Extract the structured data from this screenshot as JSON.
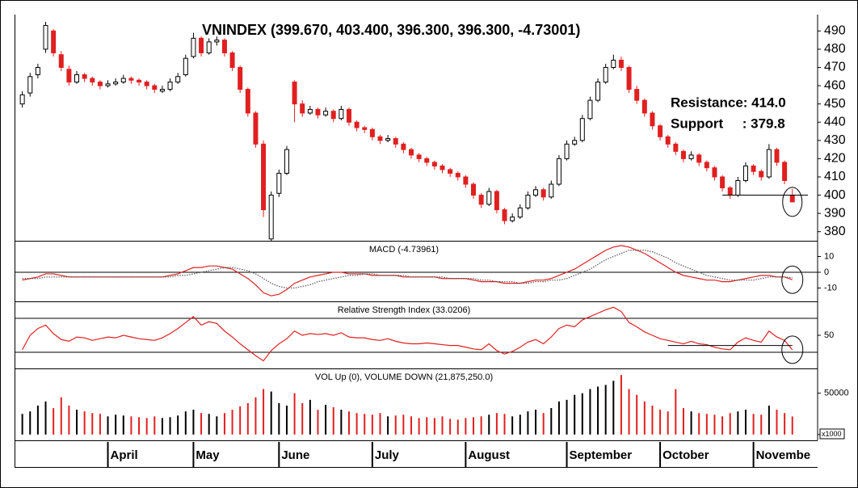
{
  "x_axis": {
    "xlim": [
      -1,
      101
    ],
    "xticks": [
      {
        "value": 11,
        "label": "April"
      },
      {
        "value": 22,
        "label": "May"
      },
      {
        "value": 33,
        "label": "June"
      },
      {
        "value": 45,
        "label": "July"
      },
      {
        "value": 57,
        "label": "August"
      },
      {
        "value": 70,
        "label": "September"
      },
      {
        "value": 82,
        "label": "October"
      },
      {
        "value": 94,
        "label": "Novembe"
      }
    ]
  },
  "chart_data": [
    {
      "type": "candlestick",
      "title": "VNINDEX (399.670, 403.400, 396.300, 396.300, -4.73001)",
      "annotations": [
        "Resistance: 414.0",
        "Support     : 379.8"
      ],
      "support_line": {
        "value": 400,
        "from": 90,
        "to": 101
      },
      "up_color": "#ffffff",
      "down_color": "#e02020",
      "ylim": [
        375,
        499
      ],
      "yticks": [
        380,
        390,
        400,
        410,
        420,
        430,
        440,
        450,
        460,
        470,
        480,
        490
      ],
      "ohlc": [
        [
          450,
          457,
          448,
          455
        ],
        [
          456,
          467,
          454,
          465
        ],
        [
          466,
          472,
          464,
          470
        ],
        [
          480,
          495,
          478,
          493
        ],
        [
          490,
          491,
          476,
          478
        ],
        [
          477,
          479,
          468,
          470
        ],
        [
          469,
          471,
          460,
          462
        ],
        [
          462,
          468,
          461,
          466
        ],
        [
          466,
          467,
          462,
          464
        ],
        [
          464,
          465,
          460,
          462
        ],
        [
          462,
          463,
          458,
          460
        ],
        [
          460,
          463,
          459,
          461
        ],
        [
          461,
          464,
          460,
          462
        ],
        [
          462,
          466,
          461,
          464
        ],
        [
          464,
          465,
          461,
          463
        ],
        [
          463,
          464,
          460,
          462
        ],
        [
          462,
          463,
          458,
          460
        ],
        [
          460,
          461,
          456,
          458
        ],
        [
          457,
          460,
          456,
          458
        ],
        [
          458,
          464,
          457,
          462
        ],
        [
          462,
          467,
          461,
          465
        ],
        [
          466,
          477,
          465,
          475
        ],
        [
          476,
          489,
          475,
          486
        ],
        [
          486,
          487,
          476,
          478
        ],
        [
          478,
          486,
          477,
          484
        ],
        [
          484,
          487,
          482,
          485
        ],
        [
          485,
          486,
          476,
          478
        ],
        [
          478,
          479,
          468,
          470
        ],
        [
          470,
          471,
          456,
          458
        ],
        [
          458,
          459,
          443,
          445
        ],
        [
          445,
          446,
          426,
          428
        ],
        [
          428,
          430,
          388,
          392
        ],
        [
          376,
          402,
          375,
          400
        ],
        [
          401,
          414,
          399,
          412
        ],
        [
          412,
          427,
          411,
          425
        ],
        [
          462,
          463,
          440,
          450
        ],
        [
          450,
          452,
          443,
          445
        ],
        [
          445,
          449,
          444,
          447
        ],
        [
          447,
          448,
          442,
          444
        ],
        [
          444,
          448,
          443,
          446
        ],
        [
          446,
          447,
          440,
          442
        ],
        [
          442,
          449,
          441,
          447
        ],
        [
          447,
          448,
          438,
          440
        ],
        [
          440,
          441,
          435,
          437
        ],
        [
          437,
          438,
          434,
          436
        ],
        [
          436,
          437,
          430,
          432
        ],
        [
          432,
          433,
          428,
          430
        ],
        [
          430,
          433,
          429,
          431
        ],
        [
          431,
          432,
          426,
          428
        ],
        [
          428,
          429,
          423,
          425
        ],
        [
          425,
          426,
          420,
          422
        ],
        [
          422,
          423,
          418,
          420
        ],
        [
          420,
          421,
          416,
          418
        ],
        [
          418,
          419,
          414,
          416
        ],
        [
          416,
          417,
          412,
          414
        ],
        [
          414,
          415,
          410,
          412
        ],
        [
          412,
          413,
          408,
          410
        ],
        [
          410,
          411,
          404,
          406
        ],
        [
          406,
          407,
          398,
          400
        ],
        [
          400,
          401,
          393,
          395
        ],
        [
          395,
          404,
          394,
          402
        ],
        [
          402,
          403,
          390,
          392
        ],
        [
          392,
          393,
          384,
          386
        ],
        [
          386,
          390,
          385,
          388
        ],
        [
          388,
          395,
          387,
          393
        ],
        [
          393,
          402,
          392,
          400
        ],
        [
          400,
          405,
          399,
          403
        ],
        [
          403,
          404,
          397,
          399
        ],
        [
          399,
          408,
          398,
          406
        ],
        [
          406,
          422,
          405,
          420
        ],
        [
          420,
          430,
          419,
          428
        ],
        [
          428,
          432,
          427,
          430
        ],
        [
          430,
          444,
          429,
          442
        ],
        [
          442,
          454,
          441,
          452
        ],
        [
          452,
          464,
          451,
          462
        ],
        [
          462,
          472,
          461,
          470
        ],
        [
          470,
          477,
          469,
          474
        ],
        [
          474,
          476,
          468,
          470
        ],
        [
          470,
          471,
          456,
          458
        ],
        [
          458,
          460,
          450,
          452
        ],
        [
          452,
          453,
          443,
          445
        ],
        [
          445,
          446,
          436,
          438
        ],
        [
          438,
          439,
          430,
          432
        ],
        [
          432,
          433,
          426,
          428
        ],
        [
          428,
          429,
          422,
          424
        ],
        [
          424,
          425,
          418,
          420
        ],
        [
          420,
          424,
          419,
          422
        ],
        [
          422,
          423,
          416,
          418
        ],
        [
          418,
          419,
          413,
          415
        ],
        [
          415,
          416,
          408,
          410
        ],
        [
          410,
          411,
          402,
          404
        ],
        [
          404,
          405,
          398,
          400
        ],
        [
          400,
          410,
          399,
          408
        ],
        [
          408,
          418,
          407,
          416
        ],
        [
          416,
          417,
          411,
          413
        ],
        [
          413,
          414,
          408,
          410
        ],
        [
          410,
          428,
          409,
          425
        ],
        [
          425,
          426,
          416,
          418
        ],
        [
          418,
          419,
          406,
          408
        ],
        [
          399.67,
          403.4,
          396.3,
          396.3
        ]
      ]
    },
    {
      "type": "line",
      "title": "MACD (-4.73961)",
      "ylim": [
        -18,
        19
      ],
      "yticks": [
        10,
        0,
        -10
      ],
      "hlines": [
        0
      ],
      "series": [
        {
          "color": "#e02020",
          "style": "solid",
          "values": [
            -5,
            -4,
            -3,
            -1,
            -1,
            -2,
            -3,
            -3,
            -3,
            -3,
            -3,
            -3,
            -3,
            -3,
            -3,
            -3,
            -3,
            -3,
            -3,
            -2,
            -1,
            1,
            3,
            3,
            4,
            4,
            3,
            2,
            -1,
            -4,
            -8,
            -13,
            -15,
            -14,
            -11,
            -7,
            -5,
            -3,
            -2,
            -1,
            0,
            0,
            -1,
            -1,
            -1,
            -2,
            -2,
            -2,
            -2,
            -3,
            -3,
            -3,
            -3,
            -3,
            -4,
            -4,
            -4,
            -4,
            -5,
            -6,
            -6,
            -6,
            -7,
            -7,
            -7,
            -6,
            -5,
            -5,
            -4,
            -2,
            0,
            2,
            5,
            8,
            11,
            14,
            16,
            17,
            16,
            14,
            12,
            9,
            6,
            3,
            0,
            -2,
            -3,
            -4,
            -5,
            -5,
            -6,
            -6,
            -5,
            -4,
            -3,
            -2,
            -2,
            -3,
            -3,
            -4.74
          ]
        },
        {
          "color": "#555555",
          "style": "dotted",
          "values": [
            -4,
            -4,
            -4,
            -3,
            -3,
            -3,
            -3,
            -3,
            -3,
            -3,
            -3,
            -3,
            -3,
            -3,
            -3,
            -3,
            -3,
            -3,
            -3,
            -3,
            -2,
            -2,
            -1,
            0,
            1,
            2,
            3,
            3,
            2,
            1,
            -1,
            -4,
            -7,
            -9,
            -10,
            -10,
            -9,
            -8,
            -6,
            -5,
            -4,
            -3,
            -2,
            -2,
            -1,
            -1,
            -2,
            -2,
            -2,
            -2,
            -3,
            -3,
            -3,
            -3,
            -3,
            -4,
            -4,
            -4,
            -4,
            -5,
            -5,
            -6,
            -6,
            -6,
            -7,
            -7,
            -6,
            -6,
            -5,
            -5,
            -4,
            -2,
            0,
            2,
            5,
            8,
            10,
            12,
            14,
            14,
            14,
            13,
            11,
            9,
            6,
            4,
            2,
            0,
            -2,
            -3,
            -4,
            -5,
            -5,
            -5,
            -5,
            -4,
            -3,
            -3,
            -3,
            -3.5
          ]
        }
      ]
    },
    {
      "type": "line",
      "title": "Relative Strength Index (33.0206)",
      "ylim": [
        12,
        88
      ],
      "yticks": [
        50
      ],
      "hlines": [
        30,
        70
      ],
      "trend_line": {
        "value": 38,
        "from": 83,
        "to": 99
      },
      "series": [
        {
          "color": "#e02020",
          "style": "solid",
          "values": [
            33,
            50,
            58,
            62,
            52,
            45,
            43,
            48,
            47,
            44,
            46,
            48,
            47,
            50,
            48,
            46,
            45,
            44,
            47,
            52,
            58,
            65,
            72,
            62,
            66,
            64,
            55,
            48,
            40,
            33,
            26,
            20,
            32,
            40,
            46,
            55,
            50,
            52,
            51,
            52,
            50,
            53,
            48,
            47,
            47,
            45,
            44,
            46,
            43,
            41,
            40,
            40,
            41,
            40,
            39,
            38,
            38,
            36,
            34,
            33,
            40,
            32,
            28,
            31,
            36,
            42,
            45,
            40,
            48,
            58,
            62,
            60,
            68,
            72,
            76,
            80,
            83,
            78,
            65,
            60,
            54,
            50,
            46,
            44,
            42,
            40,
            43,
            40,
            39,
            36,
            34,
            33,
            42,
            47,
            44,
            42,
            55,
            48,
            44,
            33.02
          ]
        }
      ]
    },
    {
      "type": "bar",
      "title": "VOL Up (0), VOLUME DOWN (21,875,250.0)",
      "unit_label": "x1000",
      "ylim": [
        -7000,
        78000
      ],
      "yticks": [
        {
          "value": 50000,
          "label": "50000"
        },
        0
      ],
      "up_color": "#000000",
      "down_color": "#e02020",
      "values": [
        25000,
        28000,
        35000,
        40000,
        32000,
        45000,
        35000,
        30000,
        28000,
        26000,
        25000,
        22000,
        24000,
        23000,
        22000,
        21000,
        20000,
        22000,
        20000,
        21000,
        23000,
        28000,
        30000,
        26000,
        25000,
        22000,
        26000,
        30000,
        34000,
        38000,
        45000,
        55000,
        52000,
        38000,
        35000,
        50000,
        38000,
        42000,
        30000,
        36000,
        33000,
        30000,
        28000,
        26000,
        25000,
        24000,
        26000,
        22000,
        23000,
        24000,
        22000,
        20000,
        21000,
        20000,
        22000,
        19000,
        18000,
        20000,
        21000,
        22000,
        24000,
        26000,
        25000,
        22000,
        24000,
        28000,
        30000,
        26000,
        32000,
        40000,
        42000,
        48000,
        50000,
        55000,
        58000,
        60000,
        65000,
        72000,
        55000,
        48000,
        40000,
        35000,
        30000,
        28000,
        55000,
        32000,
        28000,
        26000,
        25000,
        24000,
        22000,
        26000,
        28000,
        30000,
        25000,
        24000,
        35000,
        30000,
        26000,
        21875.25
      ]
    }
  ]
}
